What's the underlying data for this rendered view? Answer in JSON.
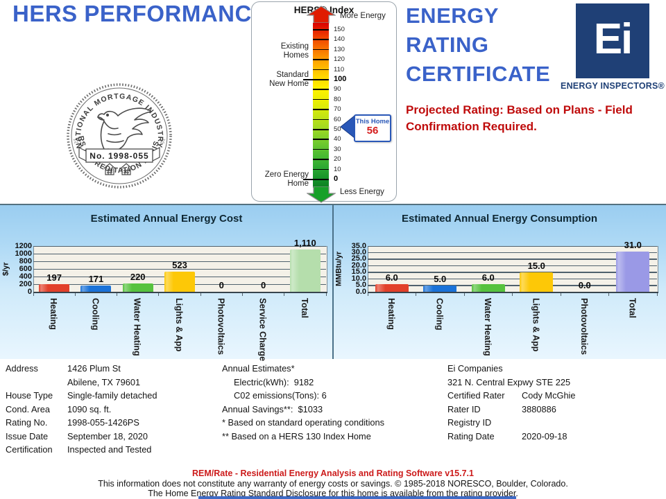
{
  "header": {
    "title": "HERS PERFORMANCE",
    "cert_line1": "ENERGY",
    "cert_line2": "RATING",
    "cert_line3": "CERTIFICATE",
    "projected_note": "Projected Rating: Based on Plans - Field Confirmation Required.",
    "brand": {
      "monogram": "Ei",
      "company": "ENERGY INSPECTORS®"
    },
    "seal": {
      "arc_top": "NATIONAL MORTGAGE INDUSTRY",
      "arc_bottom": "HERS ACCREDITATION REGISTRY",
      "number": "No. 1998-055",
      "star": "☆"
    }
  },
  "gauge": {
    "title": "HERS® Index",
    "more_energy": "More Energy",
    "less_energy": "Less Energy",
    "labels": {
      "existing": [
        "Existing",
        "Homes"
      ],
      "standard": [
        "Standard",
        "New Home"
      ],
      "zero": [
        "Zero Energy",
        "Home"
      ]
    },
    "ticks": [
      150,
      140,
      130,
      120,
      110,
      100,
      90,
      80,
      70,
      60,
      50,
      40,
      30,
      20,
      10,
      0
    ],
    "bold_ticks": [
      100,
      0
    ],
    "this_home": {
      "label": "This Home",
      "value": "56"
    }
  },
  "chart_data": [
    {
      "type": "bar",
      "title": "Estimated Annual Energy Cost",
      "ylabel": "$/yr",
      "ylim": [
        0,
        1200
      ],
      "yticks": [
        "0",
        "200",
        "400",
        "600",
        "800",
        "1000",
        "1200"
      ],
      "grid": true,
      "categories": [
        "Heating",
        "Cooling",
        "Water Heating",
        "Lights & App",
        "Photovoltaics",
        "Service Charge",
        "Total"
      ],
      "values": [
        197,
        171,
        220,
        523,
        0,
        0,
        1110
      ],
      "value_labels": [
        "197",
        "171",
        "220",
        "523",
        "0",
        "0",
        "1,110"
      ],
      "bar_colors": [
        "#e2402a",
        "#1a72d8",
        "#56c23e",
        "#fdc807",
        "#cccccc",
        "#cccccc",
        "#b5deac"
      ]
    },
    {
      "type": "bar",
      "title": "Estimated Annual Energy Consumption",
      "ylabel": "MMBtu/yr",
      "ylim": [
        0,
        35
      ],
      "yticks": [
        "0.0",
        "5.0",
        "10.0",
        "15.0",
        "20.0",
        "25.0",
        "30.0",
        "35.0"
      ],
      "grid": true,
      "categories": [
        "Heating",
        "Cooling",
        "Water Heating",
        "Lights & App",
        "Photovoltaics",
        "Total"
      ],
      "values": [
        6,
        5,
        6,
        15,
        0,
        31
      ],
      "value_labels": [
        "6.0",
        "5.0",
        "6.0",
        "15.0",
        "0.0",
        "31.0"
      ],
      "bar_colors": [
        "#e2402a",
        "#1a72d8",
        "#56c23e",
        "#fdc807",
        "#cccccc",
        "#9a99e6"
      ]
    }
  ],
  "info": {
    "col1": [
      {
        "label": "Address",
        "value": "1426 Plum St"
      },
      {
        "label": "",
        "value": "Abilene, TX 79601"
      },
      {
        "label": "House Type",
        "value": "Single-family detached"
      },
      {
        "label": "Cond. Area",
        "value": "1090 sq. ft."
      },
      {
        "label": "Rating No.",
        "value": "1998-055-1426PS"
      },
      {
        "label": "Issue Date",
        "value": "September 18, 2020"
      },
      {
        "label": "Certification",
        "value": "Inspected and Tested"
      }
    ],
    "col2": [
      {
        "text": "Annual Estimates*",
        "indent": 0
      },
      {
        "text": "Electric(kWh):  9182",
        "indent": 1
      },
      {
        "text": "C02 emissions(Tons): 6",
        "indent": 1
      },
      {
        "text": "Annual Savings**:  $1033",
        "indent": 0
      },
      {
        "text": "* Based on standard operating conditions",
        "indent": 0
      },
      {
        "text": "** Based on a HERS 130 Index Home",
        "indent": 0
      }
    ],
    "col3": [
      {
        "label": "Ei Companies",
        "value": ""
      },
      {
        "label": "321 N. Central Expwy STE 225",
        "value": ""
      },
      {
        "label": "Certified Rater",
        "value": "Cody McGhie"
      },
      {
        "label": "Rater ID",
        "value": "3880886"
      },
      {
        "label": "Registry ID",
        "value": ""
      },
      {
        "label": "Rating Date",
        "value": "2020-09-18"
      }
    ]
  },
  "footer": {
    "line1": "REM/Rate - Residential Energy Analysis and Rating Software v15.7.1",
    "line2": "This information does not constitute any warranty of energy costs or savings. © 1985-2018 NORESCO, Boulder, Colorado.",
    "line3": "The Home Energy Rating Standard Disclosure for this home is available from the rating provider."
  },
  "colors": {
    "accent_blue": "#3a62c9",
    "navy": "#1f4076",
    "alert_red": "#bf0b0b",
    "footer_red": "#cc1a1a"
  }
}
